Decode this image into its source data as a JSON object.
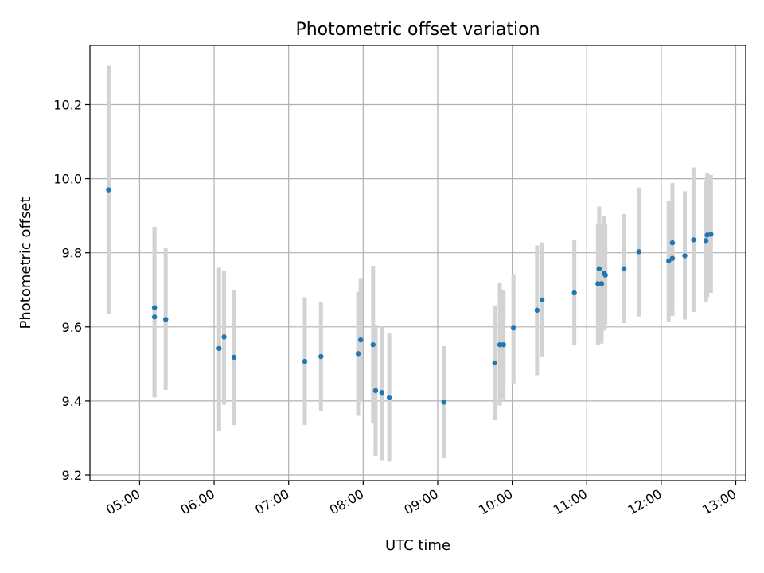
{
  "chart_data": {
    "type": "scatter",
    "title": "Photometric offset variation",
    "xlabel": "UTC time",
    "ylabel": "Photometric offset",
    "xlim": [
      "04:20",
      "13:08"
    ],
    "ylim": [
      9.185,
      10.36
    ],
    "x_ticks": [
      "05:00",
      "06:00",
      "07:00",
      "08:00",
      "09:00",
      "10:00",
      "11:00",
      "12:00",
      "13:00"
    ],
    "y_ticks": [
      "9.2",
      "9.4",
      "9.6",
      "9.8",
      "10.0",
      "10.2"
    ],
    "grid": true,
    "legend": "none",
    "marker_color": "#1f77b4",
    "errorbar_color": "#d3d3d3",
    "series": [
      {
        "points": [
          {
            "x": "04:35",
            "y": 9.97,
            "yerr": [
              9.635,
              10.305
            ]
          },
          {
            "x": "05:12",
            "y": 9.652,
            "yerr": [
              9.41,
              9.87
            ]
          },
          {
            "x": "05:12",
            "y": 9.627,
            "yerr": [
              9.41,
              9.87
            ]
          },
          {
            "x": "05:21",
            "y": 9.62,
            "yerr": [
              9.43,
              9.812
            ]
          },
          {
            "x": "06:04",
            "y": 9.542,
            "yerr": [
              9.32,
              9.76
            ]
          },
          {
            "x": "06:08",
            "y": 9.573,
            "yerr": [
              9.39,
              9.752
            ]
          },
          {
            "x": "06:16",
            "y": 9.518,
            "yerr": [
              9.335,
              9.7
            ]
          },
          {
            "x": "07:13",
            "y": 9.507,
            "yerr": [
              9.335,
              9.68
            ]
          },
          {
            "x": "07:26",
            "y": 9.52,
            "yerr": [
              9.372,
              9.668
            ]
          },
          {
            "x": "07:56",
            "y": 9.528,
            "yerr": [
              9.36,
              9.695
            ]
          },
          {
            "x": "07:58",
            "y": 9.565,
            "yerr": [
              9.398,
              9.732
            ]
          },
          {
            "x": "08:08",
            "y": 9.552,
            "yerr": [
              9.34,
              9.765
            ]
          },
          {
            "x": "08:10",
            "y": 9.428,
            "yerr": [
              9.252,
              9.605
            ]
          },
          {
            "x": "08:15",
            "y": 9.423,
            "yerr": [
              9.24,
              9.6
            ]
          },
          {
            "x": "08:21",
            "y": 9.41,
            "yerr": [
              9.238,
              9.582
            ]
          },
          {
            "x": "09:05",
            "y": 9.397,
            "yerr": [
              9.245,
              9.548
            ]
          },
          {
            "x": "09:46",
            "y": 9.503,
            "yerr": [
              9.348,
              9.658
            ]
          },
          {
            "x": "09:50",
            "y": 9.552,
            "yerr": [
              9.388,
              9.718
            ]
          },
          {
            "x": "09:53",
            "y": 9.552,
            "yerr": [
              9.405,
              9.7
            ]
          },
          {
            "x": "10:01",
            "y": 9.597,
            "yerr": [
              9.448,
              9.743
            ]
          },
          {
            "x": "10:20",
            "y": 9.645,
            "yerr": [
              9.47,
              9.82
            ]
          },
          {
            "x": "10:24",
            "y": 9.673,
            "yerr": [
              9.52,
              9.828
            ]
          },
          {
            "x": "10:50",
            "y": 9.692,
            "yerr": [
              9.55,
              9.835
            ]
          },
          {
            "x": "11:09",
            "y": 9.717,
            "yerr": [
              9.552,
              9.88
            ]
          },
          {
            "x": "11:10",
            "y": 9.757,
            "yerr": [
              9.588,
              9.925
            ]
          },
          {
            "x": "11:12",
            "y": 9.717,
            "yerr": [
              9.555,
              9.878
            ]
          },
          {
            "x": "11:14",
            "y": 9.745,
            "yerr": [
              9.59,
              9.9
            ]
          },
          {
            "x": "11:15",
            "y": 9.74,
            "yerr": [
              9.605,
              9.878
            ]
          },
          {
            "x": "11:30",
            "y": 9.757,
            "yerr": [
              9.61,
              9.905
            ]
          },
          {
            "x": "11:42",
            "y": 9.803,
            "yerr": [
              9.628,
              9.976
            ]
          },
          {
            "x": "12:06",
            "y": 9.778,
            "yerr": [
              9.615,
              9.94
            ]
          },
          {
            "x": "12:09",
            "y": 9.827,
            "yerr": [
              9.668,
              9.988
            ]
          },
          {
            "x": "12:09",
            "y": 9.785,
            "yerr": [
              9.63,
              9.942
            ]
          },
          {
            "x": "12:19",
            "y": 9.792,
            "yerr": [
              9.62,
              9.966
            ]
          },
          {
            "x": "12:26",
            "y": 9.835,
            "yerr": [
              9.64,
              10.03
            ]
          },
          {
            "x": "12:36",
            "y": 9.833,
            "yerr": [
              9.668,
              9.996
            ]
          },
          {
            "x": "12:37",
            "y": 9.848,
            "yerr": [
              9.68,
              10.016
            ]
          },
          {
            "x": "12:40",
            "y": 9.85,
            "yerr": [
              9.692,
              10.01
            ]
          }
        ]
      }
    ]
  }
}
